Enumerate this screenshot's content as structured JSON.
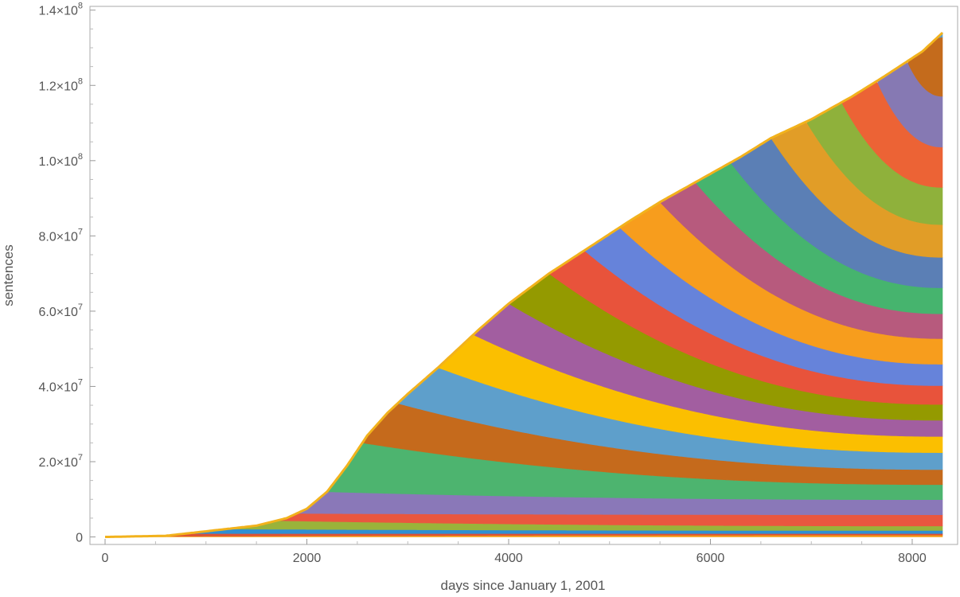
{
  "chart_data": {
    "type": "area",
    "title": "",
    "xlabel": "days since January 1, 2001",
    "ylabel": "sentences",
    "xlim": [
      -150,
      8450
    ],
    "ylim": [
      -2000000,
      141000000
    ],
    "x_ticks": [
      0,
      2000,
      4000,
      6000,
      8000
    ],
    "x_tick_labels": [
      "0",
      "2000",
      "4000",
      "6000",
      "8000"
    ],
    "y_ticks": [
      0,
      20000000,
      40000000,
      60000000,
      80000000,
      100000000,
      120000000,
      140000000
    ],
    "y_tick_labels": [
      {
        "text": "0",
        "mantissa": "",
        "exponent": ""
      },
      {
        "text": "",
        "mantissa": "2.0×10",
        "exponent": "7"
      },
      {
        "text": "",
        "mantissa": "4.0×10",
        "exponent": "7"
      },
      {
        "text": "",
        "mantissa": "6.0×10",
        "exponent": "7"
      },
      {
        "text": "",
        "mantissa": "8.0×10",
        "exponent": "7"
      },
      {
        "text": "",
        "mantissa": "1.0×10",
        "exponent": "8"
      },
      {
        "text": "",
        "mantissa": "1.2×10",
        "exponent": "8"
      },
      {
        "text": "",
        "mantissa": "1.4×10",
        "exponent": "8"
      }
    ],
    "grid": false,
    "legend": "none",
    "total": {
      "x": [
        0,
        600,
        1000,
        1500,
        1800,
        2000,
        2200,
        2400,
        2600,
        2800,
        3000,
        3300,
        3700,
        4000,
        4400,
        4800,
        5200,
        5500,
        5900,
        6300,
        6600,
        7000,
        7400,
        7700,
        8100,
        8300
      ],
      "y": [
        0,
        300000,
        1500000,
        3000000,
        5000000,
        7500000,
        12000000,
        19000000,
        27000000,
        33000000,
        38000000,
        45000000,
        55000000,
        62000000,
        70000000,
        77000000,
        84000000,
        89000000,
        95000000,
        101000000,
        106000000,
        111000000,
        117000000,
        122000000,
        129000000,
        134000000
      ]
    },
    "cohort_start_days": [
      0,
      300,
      800,
      1200,
      1700,
      1900,
      2200,
      2550,
      2900,
      3300,
      3650,
      4000,
      4400,
      4750,
      5100,
      5500,
      5850,
      6200,
      6600,
      6950,
      7300,
      7650,
      7950,
      8200
    ],
    "cohort_end_values": [
      500000,
      400000,
      800000,
      1200000,
      3000000,
      4000000,
      4000000,
      4000000,
      4500000,
      4300000,
      4300000,
      4200000,
      5000000,
      5700000,
      6800000,
      6600000,
      6900000,
      8100000,
      8700000,
      9900000,
      10700000,
      13500000,
      15700000,
      14000000
    ],
    "series_colors": [
      "#f39c12",
      "#dd5135",
      "#2f8fd3",
      "#9ab33a",
      "#e9573f",
      "#8a78b8",
      "#4db46f",
      "#c56a1c",
      "#5e9fcb",
      "#fbbf00",
      "#a25ea0",
      "#949a00",
      "#e8533b",
      "#6683da",
      "#f79d1d",
      "#b75a7d",
      "#46b46e",
      "#5b7fb5",
      "#e19d27",
      "#8fb13b",
      "#ec6335",
      "#8679b3",
      "#c46b1c",
      "#5b9fcb"
    ],
    "outline_color": "#f2b21c"
  }
}
